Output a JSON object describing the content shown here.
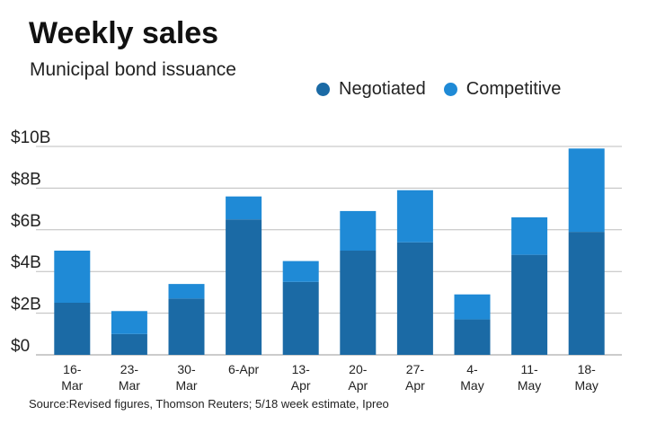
{
  "chart_data": {
    "type": "bar",
    "stacked": true,
    "title": "Weekly sales",
    "subtitle": "Municipal bond issuance",
    "categories": [
      "16-\nMar",
      "23-\nMar",
      "30-\nMar",
      "6-Apr",
      "13-\nApr",
      "20-\nApr",
      "27-\nApr",
      "4-\nMay",
      "11-\nMay",
      "18-\nMay"
    ],
    "series": [
      {
        "name": "Negotiated",
        "color": "#1b6aa5",
        "values": [
          2.5,
          1.0,
          2.7,
          6.5,
          3.5,
          5.0,
          5.4,
          1.7,
          4.8,
          5.9
        ]
      },
      {
        "name": "Competitive",
        "color": "#1f8ad6",
        "values": [
          2.5,
          1.1,
          0.7,
          1.1,
          1.0,
          1.9,
          2.5,
          1.2,
          1.8,
          4.0
        ]
      }
    ],
    "ylim": [
      0,
      10
    ],
    "yticks": [
      0,
      2,
      4,
      6,
      8,
      10
    ],
    "ytick_labels": [
      "$0",
      "$2B",
      "$4B",
      "$6B",
      "$8B",
      "$10B"
    ],
    "grid": true,
    "legend_position": "top-right"
  },
  "source": "Source:Revised figures, Thomson Reuters; 5/18 week estimate, Ipreo"
}
